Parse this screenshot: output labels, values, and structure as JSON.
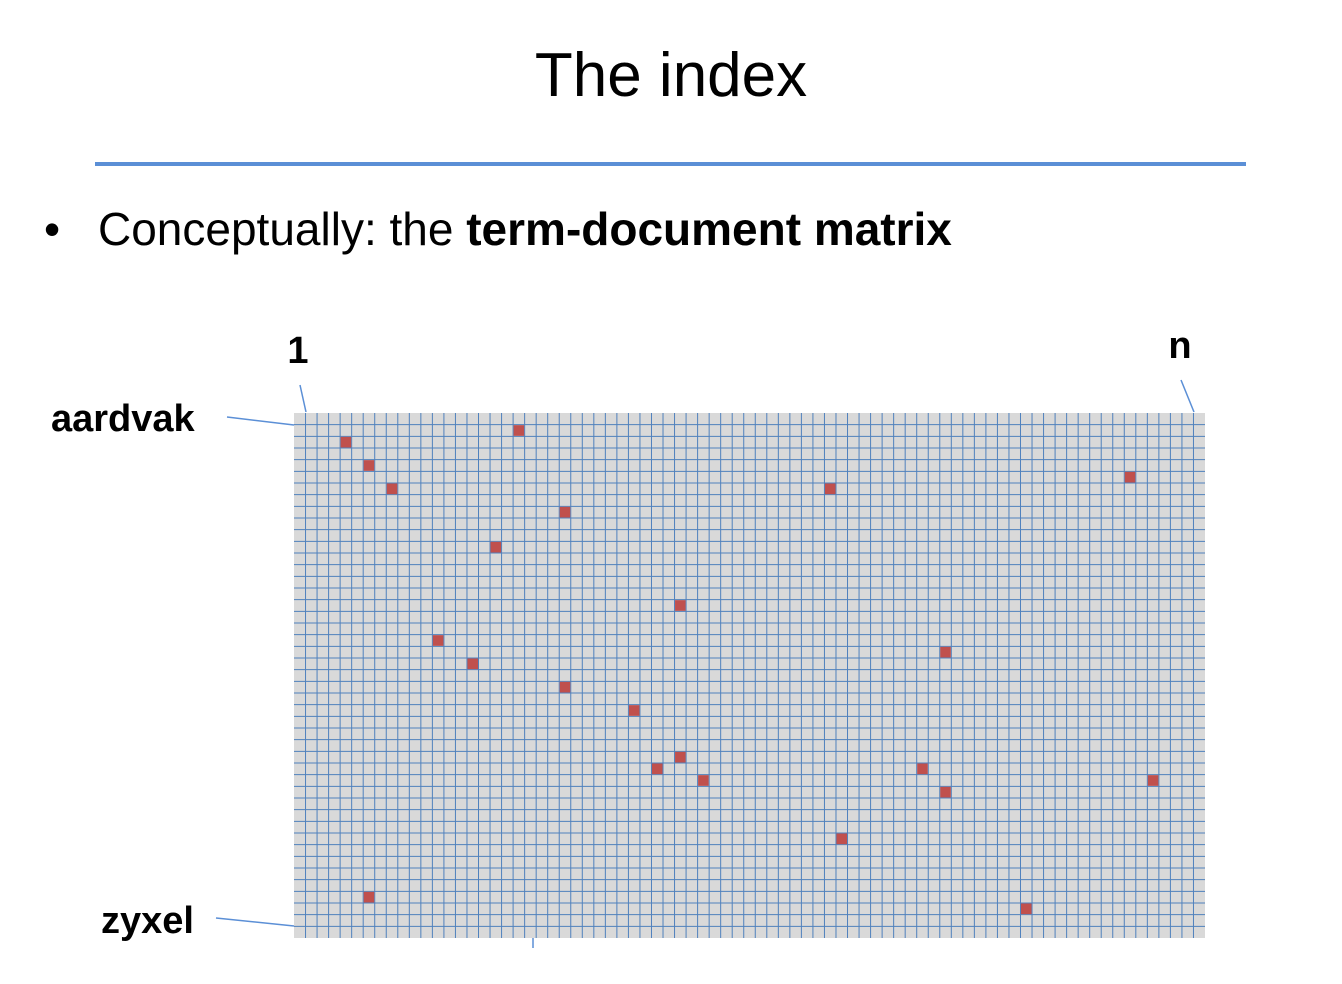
{
  "slide": {
    "title": "The index",
    "bullet": {
      "symbol": "•",
      "prefix": "Conceptually: the ",
      "bold": "term-document matrix"
    }
  },
  "matrix": {
    "col_first_label": "1",
    "col_last_label": "n",
    "row_first_label": "aardvak",
    "row_last_label": "zyxel",
    "columns": 79,
    "rows": 45,
    "background_color": "#d9d9d9",
    "gridline_color": "#4f81bd",
    "marked_color": "#c0504d",
    "marked_cells": [
      {
        "row": 2,
        "col": 20
      },
      {
        "row": 3,
        "col": 5
      },
      {
        "row": 5,
        "col": 7
      },
      {
        "row": 7,
        "col": 9
      },
      {
        "row": 6,
        "col": 73
      },
      {
        "row": 7,
        "col": 47
      },
      {
        "row": 9,
        "col": 24
      },
      {
        "row": 12,
        "col": 18
      },
      {
        "row": 17,
        "col": 34
      },
      {
        "row": 20,
        "col": 13
      },
      {
        "row": 21,
        "col": 57
      },
      {
        "row": 22,
        "col": 16
      },
      {
        "row": 24,
        "col": 24
      },
      {
        "row": 26,
        "col": 30
      },
      {
        "row": 30,
        "col": 34
      },
      {
        "row": 31,
        "col": 32
      },
      {
        "row": 31,
        "col": 55
      },
      {
        "row": 32,
        "col": 36
      },
      {
        "row": 32,
        "col": 75
      },
      {
        "row": 33,
        "col": 57
      },
      {
        "row": 37,
        "col": 48
      },
      {
        "row": 42,
        "col": 7
      },
      {
        "row": 43,
        "col": 64
      }
    ]
  }
}
